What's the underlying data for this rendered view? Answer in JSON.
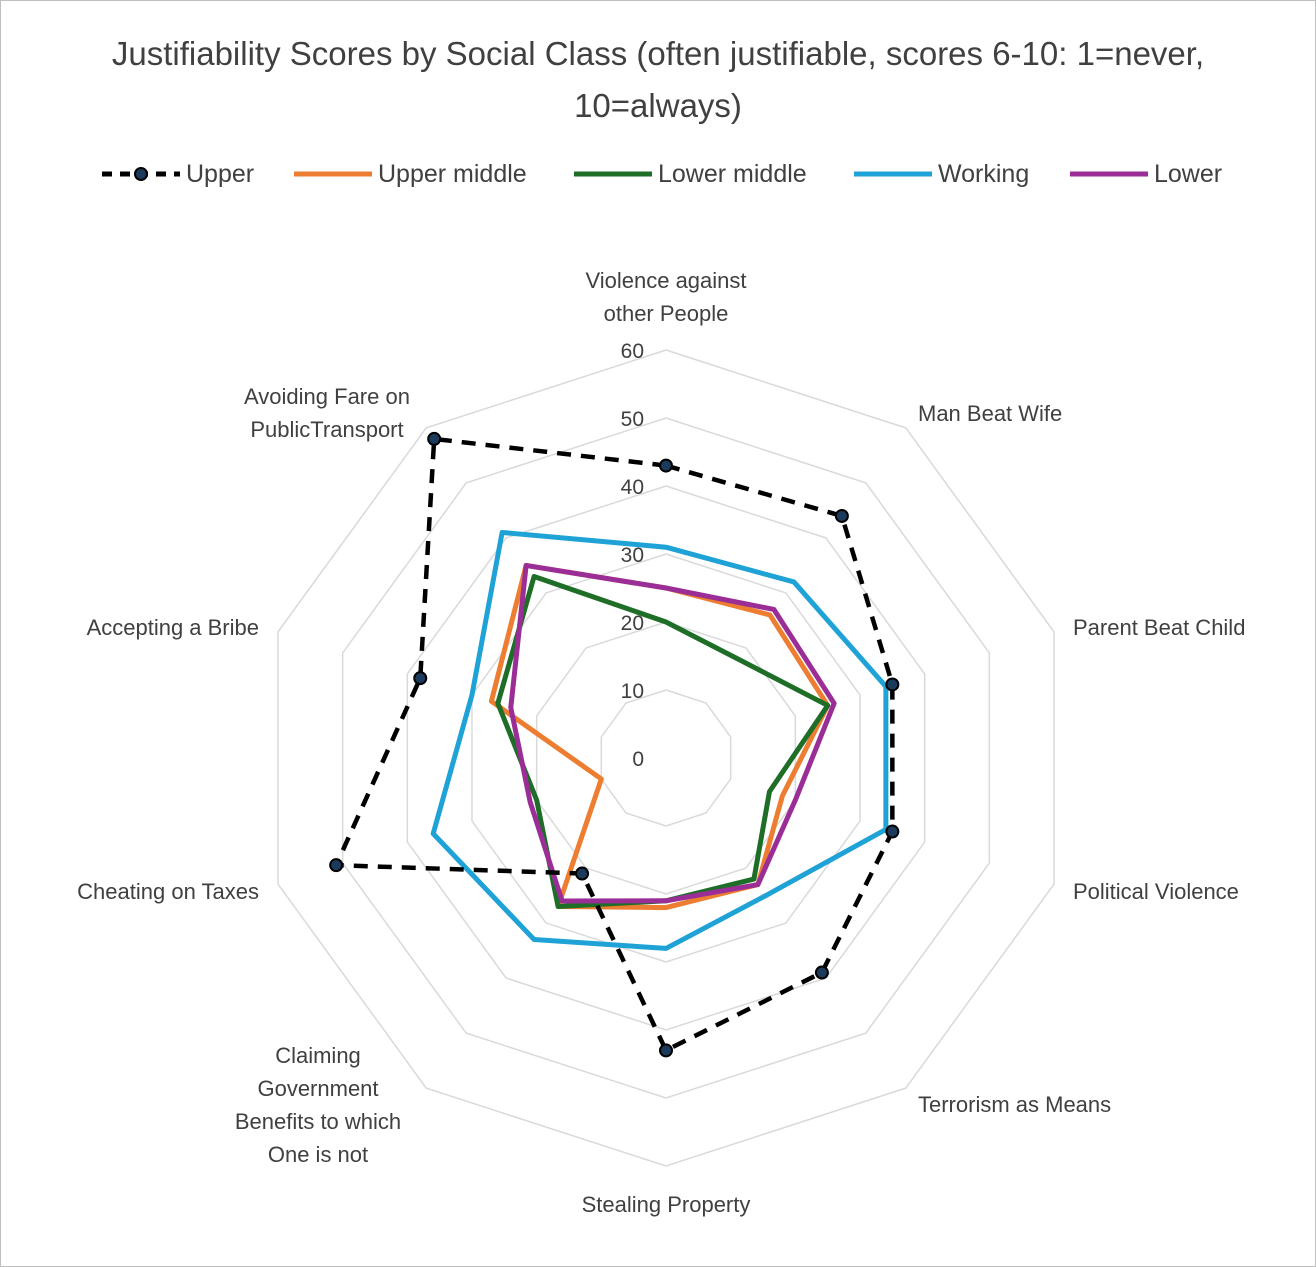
{
  "chart_data": {
    "type": "radar",
    "title": "Justifiability Scores by Social Class (often justifiable, scores 6-10: 1=never, 10=always)",
    "categories": [
      "Violence against other People",
      "Man Beat Wife",
      "Parent Beat Child",
      "Political Violence",
      "Terrorism as Means",
      "Stealing Property",
      "Claiming Government Benefits to which One is not Entitled",
      "Cheating on Taxes",
      "Accepting a Bribe",
      "Avoiding Fare on PublicTransport"
    ],
    "rlim": [
      0,
      60
    ],
    "ticks": [
      "0",
      "10",
      "20",
      "30",
      "40",
      "50",
      "60"
    ],
    "tick_values": [
      0,
      10,
      20,
      30,
      40,
      50,
      60
    ],
    "grid": true,
    "legend_position": "top",
    "series": [
      {
        "name": "Upper",
        "color": "#000000",
        "dashed": true,
        "markers": true,
        "values": [
          43,
          44,
          35,
          35,
          39,
          43,
          21,
          51,
          38,
          58
        ]
      },
      {
        "name": "Upper middle",
        "color": "#ED7D31",
        "dashed": false,
        "markers": false,
        "values": [
          25,
          26,
          25,
          18,
          23,
          22,
          27,
          10,
          27,
          35
        ]
      },
      {
        "name": "Lower middle",
        "color": "#1E6E28",
        "dashed": false,
        "markers": false,
        "values": [
          20,
          18,
          25,
          16,
          22,
          21,
          27,
          20,
          26,
          33
        ]
      },
      {
        "name": "Working",
        "color": "#1FA2D6",
        "dashed": false,
        "markers": false,
        "values": [
          31,
          32,
          34,
          34,
          25,
          28,
          33,
          36,
          30,
          41
        ]
      },
      {
        "name": "Lower",
        "color": "#9A2E96",
        "dashed": false,
        "markers": false,
        "values": [
          25,
          27,
          26,
          20,
          23,
          21,
          26,
          21,
          24,
          35
        ]
      }
    ]
  }
}
